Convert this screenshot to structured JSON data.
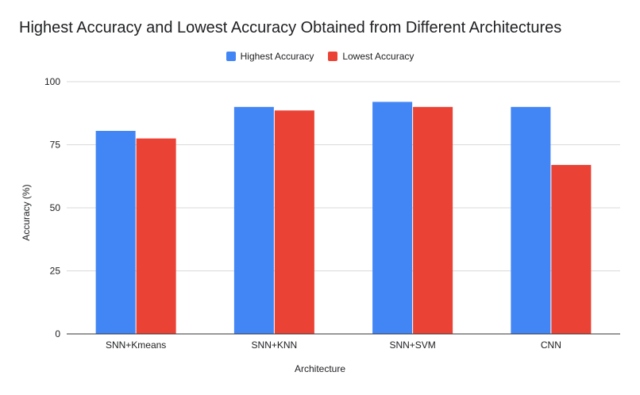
{
  "chart_data": {
    "type": "bar",
    "title": "Highest Accuracy and Lowest Accuracy Obtained from Different Architectures",
    "xlabel": "Architecture",
    "ylabel": "Accuracy (%)",
    "categories": [
      "SNN+Kmeans",
      "SNN+KNN",
      "SNN+SVM",
      "CNN"
    ],
    "series": [
      {
        "name": "Highest Accuracy",
        "color": "#4285f4",
        "values": [
          80.5,
          90.0,
          92.0,
          90.0
        ]
      },
      {
        "name": "Lowest Accuracy",
        "color": "#ea4335",
        "values": [
          77.5,
          88.6,
          90.0,
          67.0
        ]
      }
    ],
    "ylim": [
      0,
      100
    ],
    "yticks": [
      0,
      25,
      50,
      75,
      100
    ],
    "grid": true,
    "legend_position": "top"
  }
}
